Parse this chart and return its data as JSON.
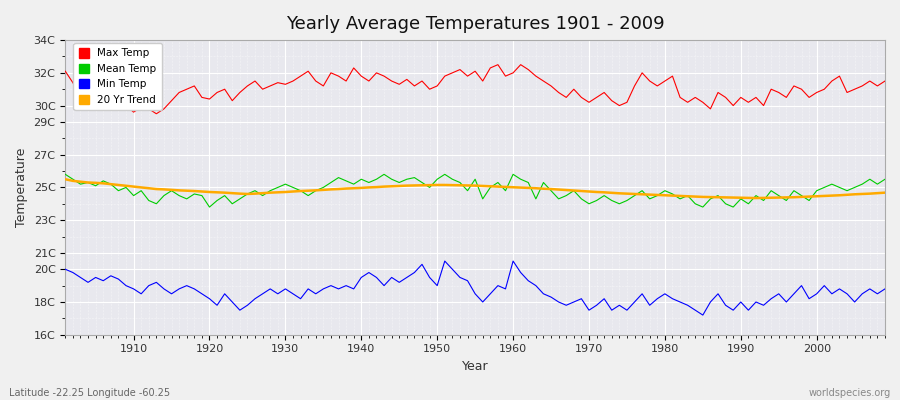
{
  "title": "Yearly Average Temperatures 1901 - 2009",
  "xlabel": "Year",
  "ylabel": "Temperature",
  "subtitle_left": "Latitude -22.25 Longitude -60.25",
  "subtitle_right": "worldspecies.org",
  "years": [
    1901,
    1902,
    1903,
    1904,
    1905,
    1906,
    1907,
    1908,
    1909,
    1910,
    1911,
    1912,
    1913,
    1914,
    1915,
    1916,
    1917,
    1918,
    1919,
    1920,
    1921,
    1922,
    1923,
    1924,
    1925,
    1926,
    1927,
    1928,
    1929,
    1930,
    1931,
    1932,
    1933,
    1934,
    1935,
    1936,
    1937,
    1938,
    1939,
    1940,
    1941,
    1942,
    1943,
    1944,
    1945,
    1946,
    1947,
    1948,
    1949,
    1950,
    1951,
    1952,
    1953,
    1954,
    1955,
    1956,
    1957,
    1958,
    1959,
    1960,
    1961,
    1962,
    1963,
    1964,
    1965,
    1966,
    1967,
    1968,
    1969,
    1970,
    1971,
    1972,
    1973,
    1974,
    1975,
    1976,
    1977,
    1978,
    1979,
    1980,
    1981,
    1982,
    1983,
    1984,
    1985,
    1986,
    1987,
    1988,
    1989,
    1990,
    1991,
    1992,
    1993,
    1994,
    1995,
    1996,
    1997,
    1998,
    1999,
    2000,
    2001,
    2002,
    2003,
    2004,
    2005,
    2006,
    2007,
    2008,
    2009
  ],
  "max_temp": [
    32.1,
    31.4,
    30.5,
    30.8,
    30.2,
    30.6,
    30.5,
    30.3,
    30.0,
    29.6,
    29.9,
    29.8,
    29.5,
    29.8,
    30.3,
    30.8,
    31.0,
    31.2,
    30.5,
    30.4,
    30.8,
    31.0,
    30.3,
    30.8,
    31.2,
    31.5,
    31.0,
    31.2,
    31.4,
    31.3,
    31.5,
    31.8,
    32.1,
    31.5,
    31.2,
    32.0,
    31.8,
    31.5,
    32.3,
    31.8,
    31.5,
    32.0,
    31.8,
    31.5,
    31.3,
    31.6,
    31.2,
    31.5,
    31.0,
    31.2,
    31.8,
    32.0,
    32.2,
    31.8,
    32.1,
    31.5,
    32.3,
    32.5,
    31.8,
    32.0,
    32.5,
    32.2,
    31.8,
    31.5,
    31.2,
    30.8,
    30.5,
    31.0,
    30.5,
    30.2,
    30.5,
    30.8,
    30.3,
    30.0,
    30.2,
    31.2,
    32.0,
    31.5,
    31.2,
    31.5,
    31.8,
    30.5,
    30.2,
    30.5,
    30.2,
    29.8,
    30.8,
    30.5,
    30.0,
    30.5,
    30.2,
    30.5,
    30.0,
    31.0,
    30.8,
    30.5,
    31.2,
    31.0,
    30.5,
    30.8,
    31.0,
    31.5,
    31.8,
    30.8,
    31.0,
    31.2,
    31.5,
    31.2,
    31.5
  ],
  "mean_temp": [
    25.8,
    25.5,
    25.2,
    25.3,
    25.1,
    25.4,
    25.2,
    24.8,
    25.0,
    24.5,
    24.8,
    24.2,
    24.0,
    24.5,
    24.8,
    24.5,
    24.3,
    24.6,
    24.5,
    23.8,
    24.2,
    24.5,
    24.0,
    24.3,
    24.6,
    24.8,
    24.5,
    24.8,
    25.0,
    25.2,
    25.0,
    24.8,
    24.5,
    24.8,
    25.0,
    25.3,
    25.6,
    25.4,
    25.2,
    25.5,
    25.3,
    25.5,
    25.8,
    25.5,
    25.3,
    25.5,
    25.6,
    25.3,
    25.0,
    25.5,
    25.8,
    25.5,
    25.3,
    24.8,
    25.5,
    24.3,
    25.0,
    25.3,
    24.8,
    25.8,
    25.5,
    25.3,
    24.3,
    25.3,
    24.8,
    24.3,
    24.5,
    24.8,
    24.3,
    24.0,
    24.2,
    24.5,
    24.2,
    24.0,
    24.2,
    24.5,
    24.8,
    24.3,
    24.5,
    24.8,
    24.6,
    24.3,
    24.5,
    24.0,
    23.8,
    24.3,
    24.5,
    24.0,
    23.8,
    24.3,
    24.0,
    24.5,
    24.2,
    24.8,
    24.5,
    24.2,
    24.8,
    24.5,
    24.2,
    24.8,
    25.0,
    25.2,
    25.0,
    24.8,
    25.0,
    25.2,
    25.5,
    25.2,
    25.5
  ],
  "min_temp": [
    20.0,
    19.8,
    19.5,
    19.2,
    19.5,
    19.3,
    19.6,
    19.4,
    19.0,
    18.8,
    18.5,
    19.0,
    19.2,
    18.8,
    18.5,
    18.8,
    19.0,
    18.8,
    18.5,
    18.2,
    17.8,
    18.5,
    18.0,
    17.5,
    17.8,
    18.2,
    18.5,
    18.8,
    18.5,
    18.8,
    18.5,
    18.2,
    18.8,
    18.5,
    18.8,
    19.0,
    18.8,
    19.0,
    18.8,
    19.5,
    19.8,
    19.5,
    19.0,
    19.5,
    19.2,
    19.5,
    19.8,
    20.3,
    19.5,
    19.0,
    20.5,
    20.0,
    19.5,
    19.3,
    18.5,
    18.0,
    18.5,
    19.0,
    18.8,
    20.5,
    19.8,
    19.3,
    19.0,
    18.5,
    18.3,
    18.0,
    17.8,
    18.0,
    18.2,
    17.5,
    17.8,
    18.2,
    17.5,
    17.8,
    17.5,
    18.0,
    18.5,
    17.8,
    18.2,
    18.5,
    18.2,
    18.0,
    17.8,
    17.5,
    17.2,
    18.0,
    18.5,
    17.8,
    17.5,
    18.0,
    17.5,
    18.0,
    17.8,
    18.2,
    18.5,
    18.0,
    18.5,
    19.0,
    18.2,
    18.5,
    19.0,
    18.5,
    18.8,
    18.5,
    18.0,
    18.5,
    18.8,
    18.5,
    18.8
  ],
  "trend": [
    25.5,
    25.4,
    25.35,
    25.3,
    25.28,
    25.25,
    25.2,
    25.15,
    25.1,
    25.05,
    25.0,
    24.95,
    24.9,
    24.88,
    24.85,
    24.82,
    24.8,
    24.78,
    24.75,
    24.72,
    24.7,
    24.68,
    24.65,
    24.62,
    24.6,
    24.62,
    24.65,
    24.68,
    24.7,
    24.72,
    24.75,
    24.78,
    24.8,
    24.82,
    24.85,
    24.88,
    24.9,
    24.93,
    24.95,
    24.97,
    25.0,
    25.02,
    25.05,
    25.07,
    25.09,
    25.11,
    25.12,
    25.13,
    25.14,
    25.15,
    25.15,
    25.14,
    25.13,
    25.12,
    25.11,
    25.09,
    25.07,
    25.05,
    25.03,
    25.01,
    24.99,
    24.97,
    24.95,
    24.92,
    24.9,
    24.87,
    24.84,
    24.81,
    24.78,
    24.75,
    24.72,
    24.7,
    24.67,
    24.64,
    24.62,
    24.6,
    24.58,
    24.56,
    24.54,
    24.52,
    24.5,
    24.48,
    24.46,
    24.44,
    24.42,
    24.41,
    24.4,
    24.39,
    24.38,
    24.37,
    24.36,
    24.35,
    24.36,
    24.37,
    24.38,
    24.39,
    24.4,
    24.42,
    24.44,
    24.46,
    24.48,
    24.5,
    24.52,
    24.55,
    24.58,
    24.6,
    24.62,
    24.65,
    24.68
  ],
  "max_color": "#ff0000",
  "mean_color": "#00cc00",
  "min_color": "#0000ff",
  "trend_color": "#ffaa00",
  "bg_color": "#f0f0f0",
  "plot_bg_color": "#e8e8ee",
  "grid_color": "#ffffff",
  "ylim": [
    16,
    34
  ],
  "legend_labels": [
    "Max Temp",
    "Mean Temp",
    "Min Temp",
    "20 Yr Trend"
  ]
}
